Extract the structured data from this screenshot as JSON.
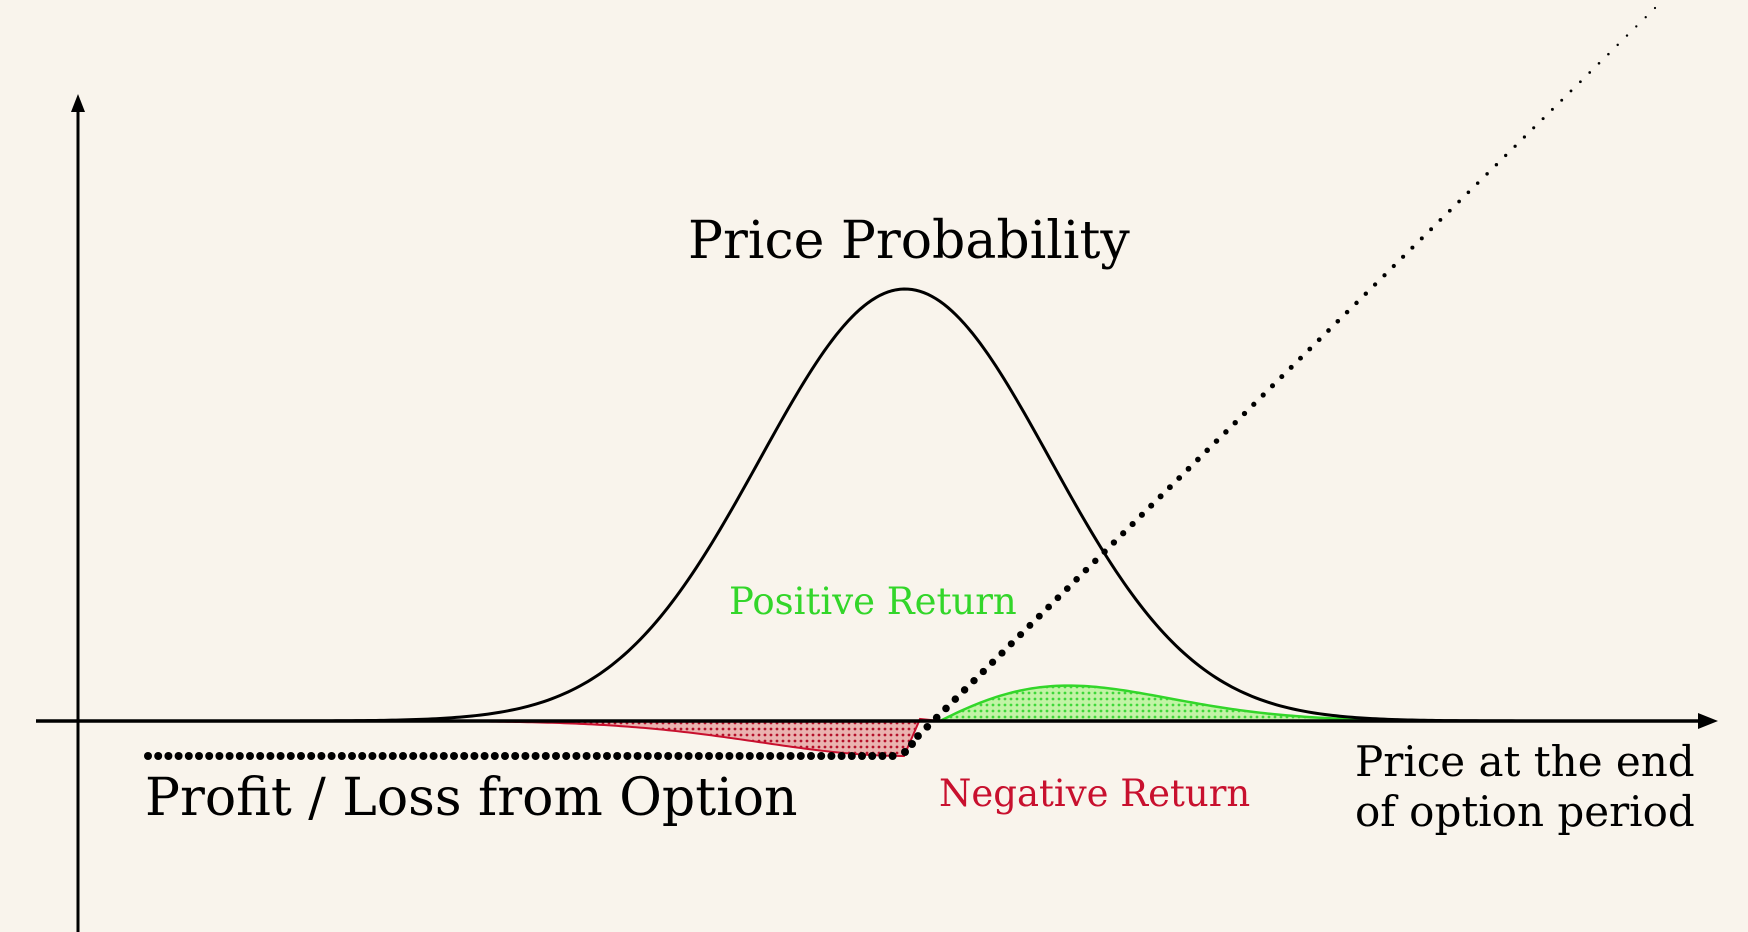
{
  "labels": {
    "price_probability": "Price Probability",
    "positive_return": "Positive Return",
    "negative_return": "Negative Return",
    "profit_loss": "Profit / Loss from Option",
    "x_axis_line1": "Price at the end",
    "x_axis_line2": "of option period"
  },
  "colors": {
    "background": "#f9f4ec",
    "axis": "#000000",
    "curve": "#000000",
    "positive": "#33d62a",
    "positive_fill": "#b6ef9c",
    "negative": "#c8102e",
    "negative_fill": "#e8a2a0"
  }
}
